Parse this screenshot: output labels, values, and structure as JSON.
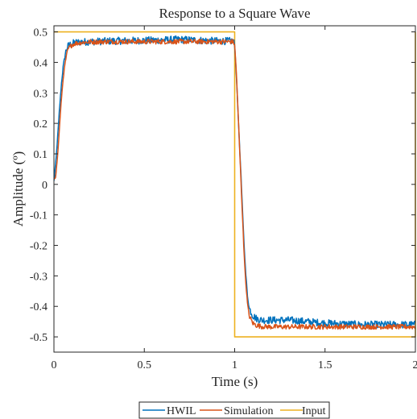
{
  "chart_data": {
    "type": "line",
    "title": "Response to a Square Wave",
    "xlabel": "Time (s)",
    "ylabel": "Amplitude (º)",
    "xlim": [
      0,
      2
    ],
    "ylim": [
      -0.55,
      0.52
    ],
    "xticks": [
      0,
      0.5,
      1,
      1.5,
      2
    ],
    "xtick_labels": [
      "0",
      "0.5",
      "1",
      "1.5",
      "2"
    ],
    "yticks": [
      0.5,
      0.4,
      0.3,
      0.2,
      0.1,
      0,
      -0.1,
      -0.2,
      -0.3,
      -0.4,
      -0.5
    ],
    "ytick_labels": [
      "0.5",
      "0.4",
      "0.3",
      "0.2",
      "0.1",
      "0",
      "-0.1",
      "-0.2",
      "-0.3",
      "-0.4",
      "-0.5"
    ],
    "grid": false,
    "legend_position": "bottom-center",
    "series": [
      {
        "name": "HWIL",
        "color": "#0072BD",
        "noise": 0.012,
        "x": [
          0,
          0.01,
          0.02,
          0.03,
          0.04,
          0.05,
          0.06,
          0.07,
          0.08,
          0.1,
          0.12,
          0.15,
          0.2,
          0.3,
          0.5,
          0.7,
          0.9,
          0.99,
          1.0,
          1.01,
          1.02,
          1.03,
          1.04,
          1.05,
          1.06,
          1.07,
          1.08,
          1.1,
          1.12,
          1.15,
          1.2,
          1.3,
          1.5,
          1.7,
          1.9,
          2.0
        ],
        "y": [
          0.01,
          0.07,
          0.15,
          0.24,
          0.32,
          0.38,
          0.42,
          0.445,
          0.455,
          0.462,
          0.465,
          0.467,
          0.468,
          0.47,
          0.472,
          0.475,
          0.47,
          0.47,
          0.46,
          0.35,
          0.22,
          0.09,
          -0.04,
          -0.17,
          -0.28,
          -0.36,
          -0.405,
          -0.43,
          -0.44,
          -0.445,
          -0.445,
          -0.445,
          -0.455,
          -0.46,
          -0.46,
          -0.46
        ]
      },
      {
        "name": "Simulation",
        "color": "#D95319",
        "noise": 0.008,
        "x": [
          0,
          0.01,
          0.02,
          0.03,
          0.04,
          0.05,
          0.06,
          0.07,
          0.08,
          0.1,
          0.12,
          0.15,
          0.2,
          0.3,
          0.5,
          0.7,
          0.9,
          0.99,
          1.0,
          1.01,
          1.02,
          1.03,
          1.04,
          1.05,
          1.06,
          1.07,
          1.08,
          1.1,
          1.12,
          1.15,
          1.2,
          1.3,
          1.5,
          1.7,
          1.9,
          2.0
        ],
        "y": [
          0.02,
          0.03,
          0.09,
          0.18,
          0.27,
          0.34,
          0.39,
          0.425,
          0.445,
          0.458,
          0.462,
          0.465,
          0.467,
          0.468,
          0.468,
          0.468,
          0.468,
          0.468,
          0.46,
          0.36,
          0.22,
          0.08,
          -0.06,
          -0.2,
          -0.31,
          -0.385,
          -0.43,
          -0.455,
          -0.462,
          -0.466,
          -0.467,
          -0.467,
          -0.467,
          -0.467,
          -0.467,
          -0.467
        ]
      },
      {
        "name": "Input",
        "color": "#EDB120",
        "noise": 0,
        "x": [
          0,
          1.0,
          1.0,
          2.0,
          2.0
        ],
        "y": [
          0.5,
          0.5,
          -0.5,
          -0.5,
          0.5
        ]
      }
    ]
  }
}
